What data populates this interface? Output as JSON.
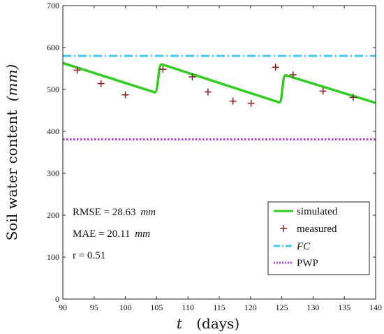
{
  "chart_data": {
    "type": "line",
    "xlabel_var": "t",
    "xlabel_unit": "(days)",
    "ylabel_text": "Soil water content",
    "ylabel_unit": "(mm)",
    "xlim": [
      90,
      140
    ],
    "ylim": [
      0,
      700
    ],
    "xticks": [
      90,
      95,
      100,
      105,
      110,
      115,
      120,
      125,
      130,
      135,
      140
    ],
    "yticks": [
      0,
      100,
      200,
      300,
      400,
      500,
      600,
      700
    ],
    "grid": false,
    "legend_position": "bottom-right",
    "series": [
      {
        "name": "simulated",
        "kind": "line",
        "color": "#33cc22",
        "x": [
          90,
          104.7,
          105.8,
          124.6,
          125.6,
          140
        ],
        "y": [
          563,
          493,
          560,
          469,
          534,
          468
        ]
      },
      {
        "name": "measured",
        "kind": "marker",
        "marker": "+",
        "color": "#8b1a1a",
        "x": [
          92.3,
          96.1,
          100,
          106,
          110.7,
          113.2,
          117.2,
          120.1,
          124,
          126.8,
          131.6,
          136.4
        ],
        "y": [
          546,
          514,
          487,
          548,
          530,
          494,
          472,
          467,
          553,
          535,
          496,
          481
        ]
      },
      {
        "name": "FC",
        "kind": "hline",
        "style": "dash-dot",
        "color": "#44c8f0",
        "y": 580
      },
      {
        "name": "PWP",
        "kind": "hline",
        "style": "dotted",
        "color": "#b833e6",
        "y": 381
      }
    ],
    "annotations": [
      {
        "label": "RMSE = 28.63",
        "unit": "mm"
      },
      {
        "label": "MAE   = 20.11",
        "unit": "mm"
      },
      {
        "label": "r = 0.51",
        "unit": ""
      }
    ]
  }
}
